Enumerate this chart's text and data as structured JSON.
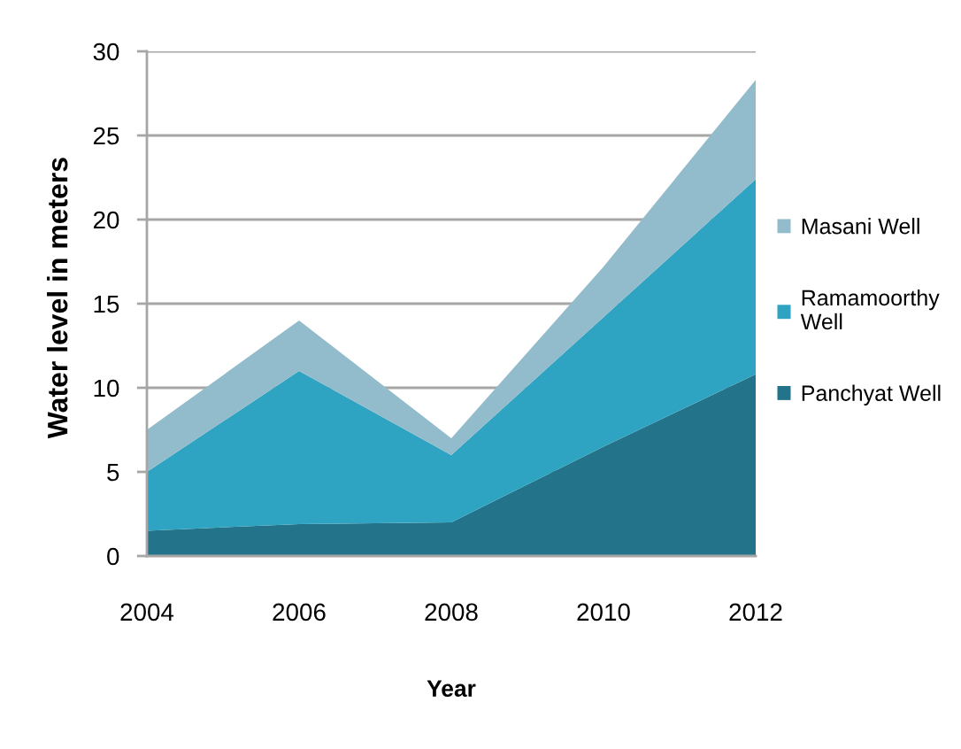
{
  "chart_data": {
    "type": "area",
    "xlabel": "Year",
    "ylabel": "Water level in meters",
    "categories": [
      "2004",
      "2006",
      "2008",
      "2010",
      "2012"
    ],
    "stacked": true,
    "series": [
      {
        "name": "Panchyat Well",
        "color": "#23748a",
        "values": [
          1.5,
          1.9,
          2.0,
          6.5,
          10.8
        ]
      },
      {
        "name": "Ramamoorthy Well",
        "color": "#2fa3c2",
        "values": [
          3.5,
          9.1,
          4.0,
          7.7,
          11.6
        ]
      },
      {
        "name": "Masani Well",
        "color": "#92bccb",
        "values": [
          2.5,
          3.0,
          1.0,
          3.0,
          5.9
        ]
      }
    ],
    "ylim": [
      0,
      30
    ],
    "yticks": [
      0,
      5,
      10,
      15,
      20,
      25,
      30
    ],
    "grid": "y",
    "legend": "right"
  }
}
